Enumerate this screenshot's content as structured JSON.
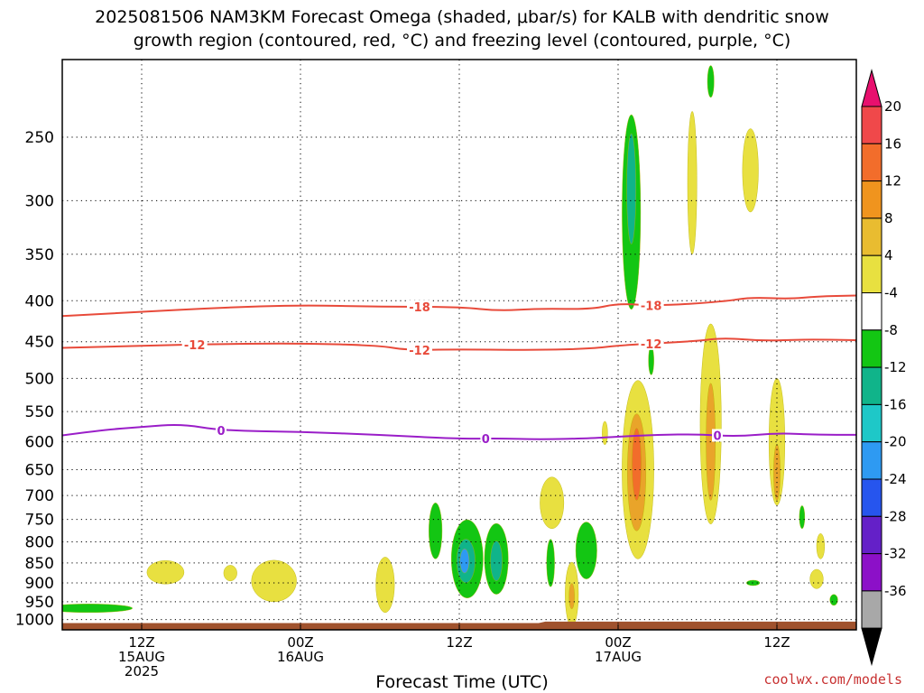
{
  "title": {
    "line1": "2025081506 NAM3KM Forecast Omega (shaded, μbar/s) for KALB with dendritic snow",
    "line2": "growth region (contoured, red, °C) and freezing level (contoured, purple, °C)"
  },
  "credit": "coolwx.com/models",
  "chart_data": {
    "type": "heatmap",
    "xlabel": "Forecast Time (UTC)",
    "x_ticks": [
      {
        "t": 6,
        "lines": [
          "12Z",
          "15AUG",
          "2025"
        ]
      },
      {
        "t": 18,
        "lines": [
          "00Z",
          "16AUG"
        ]
      },
      {
        "t": 30,
        "lines": [
          "12Z"
        ]
      },
      {
        "t": 42,
        "lines": [
          "00Z",
          "17AUG"
        ]
      },
      {
        "t": 54,
        "lines": [
          "12Z"
        ]
      }
    ],
    "x_range_hours": [
      0,
      60
    ],
    "y_ticks": [
      250,
      300,
      350,
      400,
      450,
      500,
      550,
      600,
      650,
      700,
      750,
      800,
      850,
      900,
      950,
      1000
    ],
    "y_range_hpa": [
      200,
      1030
    ],
    "y_scale": "log",
    "grid": "dotted, at pressure ticks",
    "colorbar": {
      "labels": [
        "20",
        "16",
        "12",
        "8",
        "4",
        "-4",
        "-8",
        "-12",
        "-16",
        "-20",
        "-24",
        "-28",
        "-32",
        "-36"
      ],
      "colors": [
        "#e8106e",
        "#f0484a",
        "#f26d2b",
        "#f0941e",
        "#e9bc30",
        "#e8e040",
        "#ffffff",
        "#13c613",
        "#10b48a",
        "#1ec8c8",
        "#2e9af2",
        "#2655ee",
        "#6420c8",
        "#8c10c8",
        "#a8a8a8",
        "#000000"
      ]
    },
    "contours": [
      {
        "name": "-18",
        "color": "#e84a3a",
        "labels": [
          {
            "t": 27,
            "label": "-18"
          },
          {
            "t": 44.5,
            "label": "-18"
          }
        ],
        "points": [
          [
            0,
            418
          ],
          [
            6,
            413
          ],
          [
            12,
            408
          ],
          [
            18,
            405
          ],
          [
            24,
            407
          ],
          [
            30,
            407
          ],
          [
            33,
            412
          ],
          [
            36,
            409
          ],
          [
            40,
            410
          ],
          [
            42,
            403
          ],
          [
            45,
            406
          ],
          [
            50,
            401
          ],
          [
            52,
            396
          ],
          [
            55,
            398
          ],
          [
            57,
            395
          ],
          [
            60,
            394
          ]
        ]
      },
      {
        "name": "-12",
        "color": "#e84a3a",
        "labels": [
          {
            "t": 10,
            "label": "-12"
          },
          {
            "t": 27,
            "label": "-12"
          },
          {
            "t": 44.5,
            "label": "-12"
          }
        ],
        "points": [
          [
            0,
            458
          ],
          [
            6,
            455
          ],
          [
            12,
            453
          ],
          [
            18,
            452
          ],
          [
            24,
            455
          ],
          [
            26,
            461
          ],
          [
            30,
            460
          ],
          [
            36,
            461
          ],
          [
            40,
            459
          ],
          [
            42,
            455
          ],
          [
            45,
            452
          ],
          [
            48,
            449
          ],
          [
            50,
            445
          ],
          [
            53,
            449
          ],
          [
            56,
            447
          ],
          [
            60,
            448
          ]
        ]
      },
      {
        "name": "0",
        "color": "#9a1ec8",
        "labels": [
          {
            "t": 12,
            "label": "0"
          },
          {
            "t": 32,
            "label": "0"
          },
          {
            "t": 49.5,
            "label": "0"
          }
        ],
        "points": [
          [
            0,
            589
          ],
          [
            3,
            580
          ],
          [
            6,
            575
          ],
          [
            9,
            570
          ],
          [
            12,
            581
          ],
          [
            18,
            583
          ],
          [
            24,
            588
          ],
          [
            30,
            595
          ],
          [
            33,
            594
          ],
          [
            36,
            596
          ],
          [
            40,
            594
          ],
          [
            42,
            591
          ],
          [
            45,
            588
          ],
          [
            48,
            587
          ],
          [
            51,
            591
          ],
          [
            54,
            585
          ],
          [
            57,
            588
          ],
          [
            60,
            588
          ]
        ]
      }
    ],
    "shaded_regions": [
      {
        "t": 2.0,
        "p": 968,
        "dt": 3.3,
        "dp_hpa": 12,
        "value": -6
      },
      {
        "t": 7.8,
        "p": 873,
        "dt": 1.4,
        "dp_hpa": 30,
        "value": 6
      },
      {
        "t": 12.7,
        "p": 875,
        "dt": 0.5,
        "dp_hpa": 20,
        "value": 6
      },
      {
        "t": 16.0,
        "p": 895,
        "dt": 1.7,
        "dp_hpa": 55,
        "value": 6
      },
      {
        "t": 24.4,
        "p": 905,
        "dt": 0.7,
        "dp_hpa": 75,
        "value": 6
      },
      {
        "t": 28.2,
        "p": 775,
        "dt": 0.5,
        "dp_hpa": 65,
        "value": -6
      },
      {
        "t": 30.6,
        "p": 840,
        "dt": 1.2,
        "dp_hpa": 100,
        "value": -6
      },
      {
        "t": 30.5,
        "p": 845,
        "dt": 0.7,
        "dp_hpa": 55,
        "value": -10
      },
      {
        "t": 30.4,
        "p": 845,
        "dt": 0.35,
        "dp_hpa": 30,
        "value": -15
      },
      {
        "t": 32.8,
        "p": 840,
        "dt": 0.9,
        "dp_hpa": 90,
        "value": -6
      },
      {
        "t": 32.8,
        "p": 845,
        "dt": 0.45,
        "dp_hpa": 50,
        "value": -10
      },
      {
        "t": 37.0,
        "p": 715,
        "dt": 0.9,
        "dp_hpa": 55,
        "value": 6
      },
      {
        "t": 38.5,
        "p": 930,
        "dt": 0.5,
        "dp_hpa": 90,
        "value": 6
      },
      {
        "t": 38.5,
        "p": 935,
        "dt": 0.2,
        "dp_hpa": 35,
        "value": 10
      },
      {
        "t": 36.9,
        "p": 850,
        "dt": 0.3,
        "dp_hpa": 60,
        "value": -6
      },
      {
        "t": 39.6,
        "p": 820,
        "dt": 0.8,
        "dp_hpa": 70,
        "value": -6
      },
      {
        "t": 43.0,
        "p": 310,
        "dt": 0.7,
        "dp_hpa": 100,
        "value": -6
      },
      {
        "t": 43.0,
        "p": 290,
        "dt": 0.35,
        "dp_hpa": 50,
        "value": -10
      },
      {
        "t": 44.5,
        "p": 475,
        "dt": 0.15,
        "dp_hpa": 20,
        "value": -6
      },
      {
        "t": 43.5,
        "p": 650,
        "dt": 1.2,
        "dp_hpa": 190,
        "value": 6
      },
      {
        "t": 43.4,
        "p": 655,
        "dt": 0.7,
        "dp_hpa": 120,
        "value": 10
      },
      {
        "t": 43.4,
        "p": 640,
        "dt": 0.35,
        "dp_hpa": 70,
        "value": 14
      },
      {
        "t": 41.0,
        "p": 585,
        "dt": 0.15,
        "dp_hpa": 20,
        "value": 6
      },
      {
        "t": 47.6,
        "p": 285,
        "dt": 0.35,
        "dp_hpa": 65,
        "value": 6
      },
      {
        "t": 49.0,
        "p": 570,
        "dt": 0.8,
        "dp_hpa": 190,
        "value": 6
      },
      {
        "t": 49.0,
        "p": 600,
        "dt": 0.35,
        "dp_hpa": 110,
        "value": 10
      },
      {
        "t": 49.0,
        "p": 213,
        "dt": 0.25,
        "dp_hpa": 10,
        "value": -6
      },
      {
        "t": 52.0,
        "p": 275,
        "dt": 0.6,
        "dp_hpa": 35,
        "value": 6
      },
      {
        "t": 54.0,
        "p": 600,
        "dt": 0.6,
        "dp_hpa": 120,
        "value": 6
      },
      {
        "t": 54.0,
        "p": 655,
        "dt": 0.25,
        "dp_hpa": 55,
        "value": 10
      },
      {
        "t": 55.9,
        "p": 745,
        "dt": 0.15,
        "dp_hpa": 25,
        "value": -6
      },
      {
        "t": 57.3,
        "p": 810,
        "dt": 0.3,
        "dp_hpa": 30,
        "value": 6
      },
      {
        "t": 57.0,
        "p": 890,
        "dt": 0.5,
        "dp_hpa": 25,
        "value": 6
      },
      {
        "t": 58.3,
        "p": 945,
        "dt": 0.3,
        "dp_hpa": 15,
        "value": -6
      },
      {
        "t": 52.2,
        "p": 900,
        "dt": 0.5,
        "dp_hpa": 6,
        "value": -6
      }
    ],
    "terrain": {
      "color": "#a0522d",
      "p_top_start": 1010,
      "p_top_end": 1006
    }
  }
}
